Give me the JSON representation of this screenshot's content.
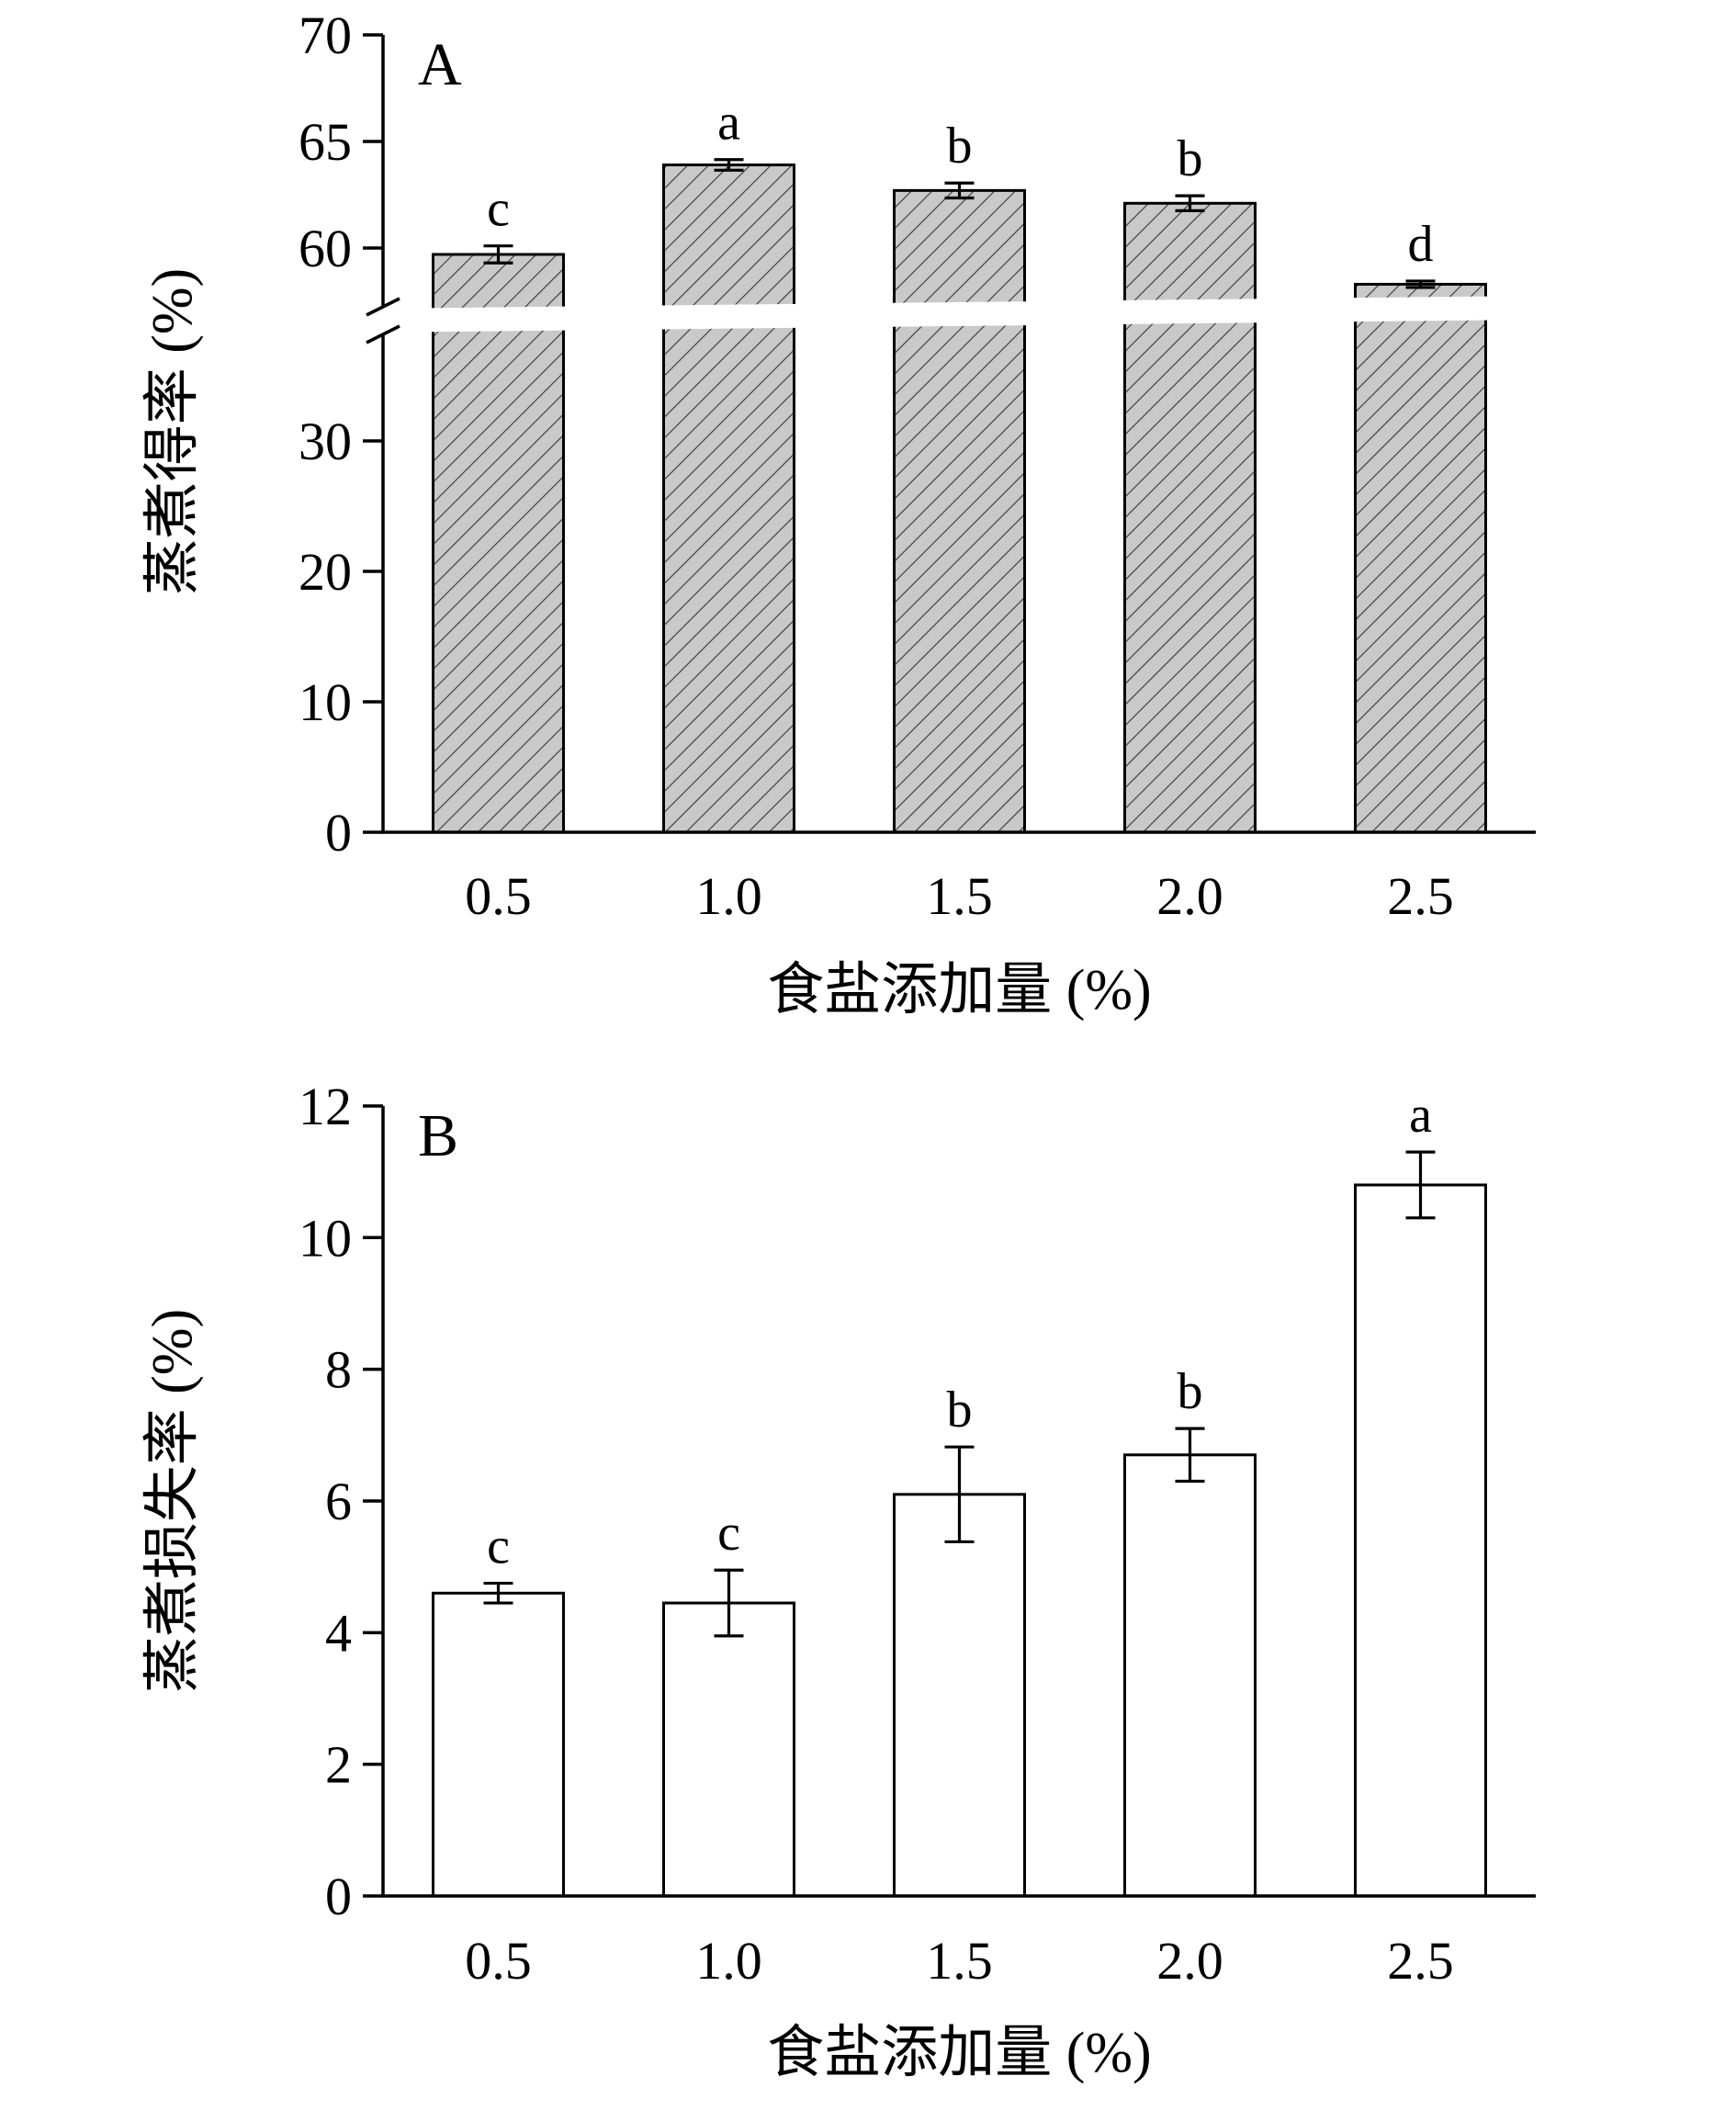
{
  "page": {
    "background": "#ffffff"
  },
  "colors": {
    "bar_hatch_fill": "#c9c9c9",
    "hatch_line": "#4a4a4a",
    "bar_open_fill": "#ffffff",
    "axis": "#000000",
    "text": "#000000"
  },
  "chart_data": [
    {
      "type": "bar",
      "panel_label": "A",
      "xlabel": "食盐添加量 (%)",
      "ylabel": "蒸煮得率 (%)",
      "categories": [
        "0.5",
        "1.0",
        "1.5",
        "2.0",
        "2.5"
      ],
      "values": [
        59.7,
        63.9,
        62.7,
        62.1,
        58.3
      ],
      "errors": [
        0.4,
        0.25,
        0.35,
        0.35,
        0.15
      ],
      "sig_labels": [
        "c",
        "a",
        "b",
        "b",
        "d"
      ],
      "bar_style": "gray-diagonal-hatch",
      "grid": false,
      "y_axis_break": {
        "lower_ticks": [
          0,
          10,
          20,
          30
        ],
        "upper_ticks": [
          60,
          65,
          70
        ],
        "break_between": [
          33,
          57
        ]
      }
    },
    {
      "type": "bar",
      "panel_label": "B",
      "xlabel": "食盐添加量 (%)",
      "ylabel": "蒸煮损失率 (%)",
      "categories": [
        "0.5",
        "1.0",
        "1.5",
        "2.0",
        "2.5"
      ],
      "values": [
        4.6,
        4.45,
        6.1,
        6.7,
        10.8
      ],
      "errors": [
        0.15,
        0.5,
        0.72,
        0.4,
        0.5
      ],
      "sig_labels": [
        "c",
        "c",
        "b",
        "b",
        "a"
      ],
      "bar_style": "open-white",
      "grid": false,
      "yticks": [
        0,
        2,
        4,
        6,
        8,
        10,
        12
      ],
      "ylim": [
        0,
        12
      ]
    }
  ]
}
